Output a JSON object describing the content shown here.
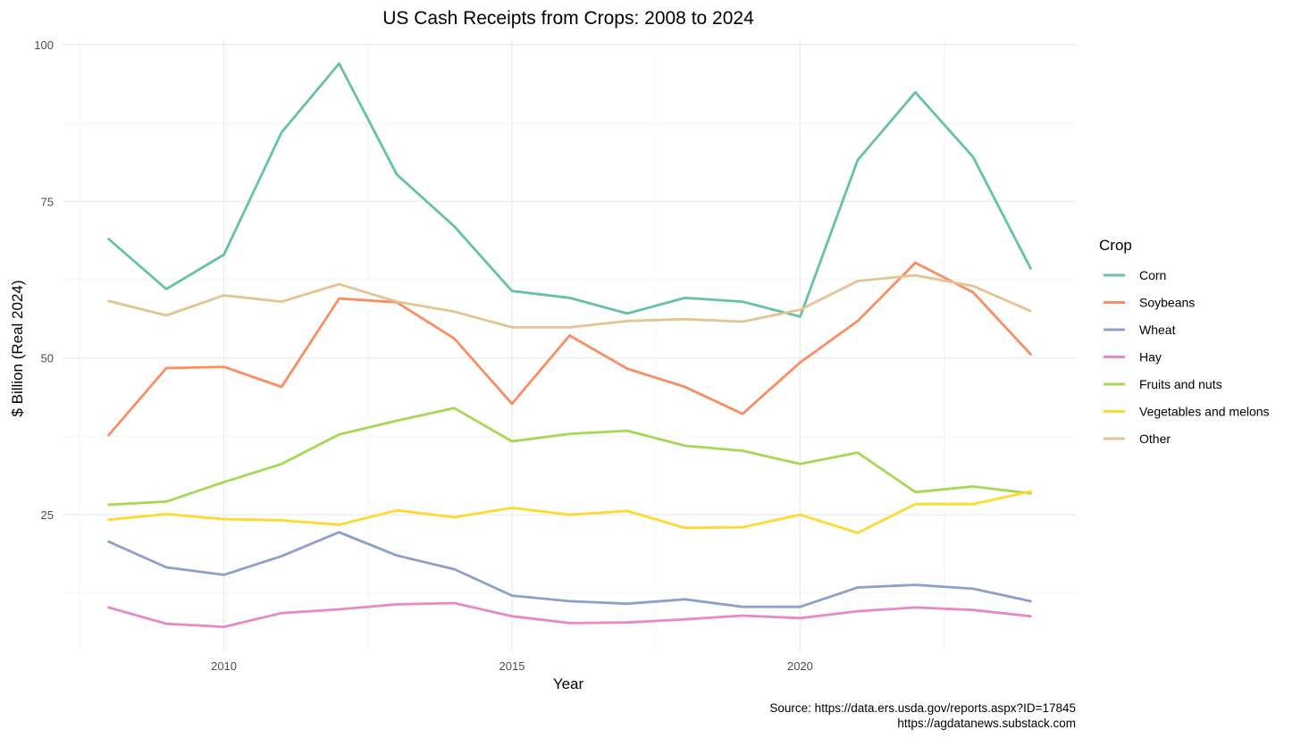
{
  "chart_data": {
    "type": "line",
    "title": "US Cash Receipts from Crops: 2008 to 2024",
    "xlabel": "Year",
    "ylabel": "$ Billion (Real 2024)",
    "x": [
      2008,
      2009,
      2010,
      2011,
      2012,
      2013,
      2014,
      2015,
      2016,
      2017,
      2018,
      2019,
      2020,
      2021,
      2022,
      2023,
      2024
    ],
    "xlim": [
      2007.2,
      2024.8
    ],
    "ylim": [
      3.2,
      101
    ],
    "x_ticks": [
      2010,
      2015,
      2020
    ],
    "y_ticks": [
      25,
      50,
      75,
      100
    ],
    "grid": true,
    "legend": {
      "title": "Crop",
      "position": "right"
    },
    "caption": [
      "Source: https://data.ers.usda.gov/reports.aspx?ID=17845",
      "https://agdatanews.substack.com"
    ],
    "series": [
      {
        "name": "Corn",
        "color": "#66c2a5",
        "values": [
          69.0,
          61.0,
          66.5,
          86.0,
          97.0,
          79.3,
          71.0,
          60.7,
          59.6,
          57.1,
          59.6,
          59.0,
          56.6,
          81.6,
          92.4,
          82.1,
          64.3
        ]
      },
      {
        "name": "Soybeans",
        "color": "#fc8d62",
        "values": [
          37.7,
          48.4,
          48.6,
          45.4,
          59.5,
          58.9,
          53.1,
          42.7,
          53.6,
          48.3,
          45.4,
          41.1,
          49.3,
          55.9,
          65.2,
          60.5,
          50.6
        ]
      },
      {
        "name": "Wheat",
        "color": "#8da0cb",
        "values": [
          20.7,
          16.6,
          15.4,
          18.4,
          22.2,
          18.5,
          16.3,
          12.1,
          11.2,
          10.8,
          11.5,
          10.3,
          10.3,
          13.4,
          13.8,
          13.2,
          11.2
        ]
      },
      {
        "name": "Hay",
        "color": "#e78ac3",
        "values": [
          10.2,
          7.6,
          7.1,
          9.3,
          9.9,
          10.7,
          10.9,
          8.8,
          7.7,
          7.8,
          8.3,
          8.9,
          8.5,
          9.6,
          10.2,
          9.8,
          8.8
        ]
      },
      {
        "name": "Fruits and nuts",
        "color": "#a6d854",
        "values": [
          26.6,
          27.1,
          30.2,
          33.1,
          37.8,
          40.0,
          42.0,
          36.7,
          37.9,
          38.4,
          36.0,
          35.2,
          33.1,
          34.9,
          28.6,
          29.5,
          28.4
        ]
      },
      {
        "name": "Vegetables and melons",
        "color": "#ffd92f",
        "values": [
          24.2,
          25.1,
          24.3,
          24.1,
          23.4,
          25.7,
          24.6,
          26.1,
          25.0,
          25.6,
          22.9,
          23.0,
          25.0,
          22.1,
          26.7,
          26.7,
          28.7
        ]
      },
      {
        "name": "Other",
        "color": "#e5c494",
        "values": [
          59.1,
          56.8,
          60.0,
          59.0,
          61.8,
          59.0,
          57.4,
          54.9,
          54.9,
          55.9,
          56.2,
          55.8,
          57.7,
          62.3,
          63.2,
          61.5,
          57.5
        ]
      }
    ]
  }
}
